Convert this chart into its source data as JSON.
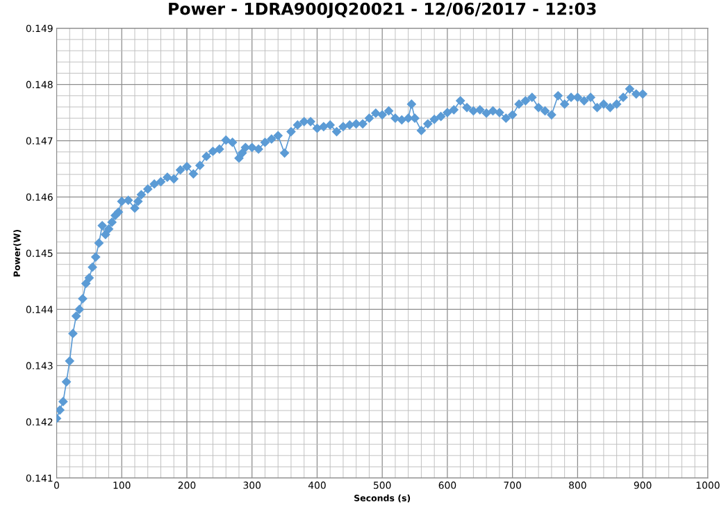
{
  "chart_data": {
    "type": "line",
    "title": "Power - 1DRA900JQ20021 - 12/06/2017 - 12:03",
    "xlabel": "Seconds (s)",
    "ylabel": "Power(W)",
    "xlim": [
      0,
      1000
    ],
    "xticks": [
      0,
      100,
      200,
      300,
      400,
      500,
      600,
      700,
      800,
      900,
      1000
    ],
    "ylim": [
      0.141,
      0.149
    ],
    "yticks": [
      0.141,
      0.142,
      0.143,
      0.144,
      0.145,
      0.146,
      0.147,
      0.148,
      0.149
    ],
    "grid": true,
    "marker": "diamond",
    "line_style": "solid",
    "legend": false,
    "x": [
      0,
      5,
      10,
      15,
      20,
      25,
      30,
      35,
      40,
      45,
      50,
      55,
      60,
      65,
      70,
      75,
      80,
      85,
      90,
      95,
      100,
      110,
      120,
      125,
      130,
      140,
      150,
      160,
      170,
      180,
      190,
      200,
      210,
      220,
      230,
      240,
      250,
      260,
      270,
      280,
      285,
      290,
      300,
      310,
      320,
      330,
      340,
      350,
      360,
      370,
      380,
      390,
      400,
      410,
      420,
      430,
      440,
      450,
      460,
      470,
      480,
      490,
      500,
      510,
      520,
      530,
      540,
      545,
      550,
      560,
      570,
      580,
      590,
      600,
      610,
      620,
      630,
      640,
      650,
      660,
      670,
      680,
      690,
      700,
      710,
      720,
      730,
      740,
      750,
      760,
      770,
      780,
      790,
      800,
      810,
      820,
      830,
      840,
      850,
      860,
      870,
      880,
      890,
      900
    ],
    "series": [
      {
        "color": "#5b9bd5",
        "values": [
          0.14206,
          0.14221,
          0.14236,
          0.14271,
          0.14308,
          0.14357,
          0.14388,
          0.144,
          0.14419,
          0.14446,
          0.14456,
          0.14475,
          0.14493,
          0.14518,
          0.14549,
          0.14533,
          0.14543,
          0.14555,
          0.14567,
          0.14573,
          0.14592,
          0.14594,
          0.1458,
          0.14592,
          0.14604,
          0.14614,
          0.14623,
          0.14627,
          0.14635,
          0.14632,
          0.14648,
          0.14654,
          0.14641,
          0.14656,
          0.14672,
          0.14681,
          0.14685,
          0.14701,
          0.14697,
          0.14669,
          0.14678,
          0.14688,
          0.14688,
          0.14685,
          0.14697,
          0.14703,
          0.14709,
          0.14678,
          0.14716,
          0.14728,
          0.14734,
          0.14734,
          0.14722,
          0.14725,
          0.14728,
          0.14716,
          0.14725,
          0.14728,
          0.1473,
          0.1473,
          0.1474,
          0.14749,
          0.14746,
          0.14753,
          0.1474,
          0.14737,
          0.1474,
          0.14765,
          0.1474,
          0.14718,
          0.1473,
          0.14738,
          0.14743,
          0.1475,
          0.14755,
          0.14771,
          0.14759,
          0.14753,
          0.14755,
          0.14749,
          0.14753,
          0.1475,
          0.1474,
          0.14746,
          0.14765,
          0.14771,
          0.14777,
          0.14759,
          0.14753,
          0.14746,
          0.1478,
          0.14765,
          0.14777,
          0.14777,
          0.14771,
          0.14777,
          0.14759,
          0.14765,
          0.14759,
          0.14765,
          0.14777,
          0.14792,
          0.14783,
          0.14783
        ]
      }
    ]
  }
}
